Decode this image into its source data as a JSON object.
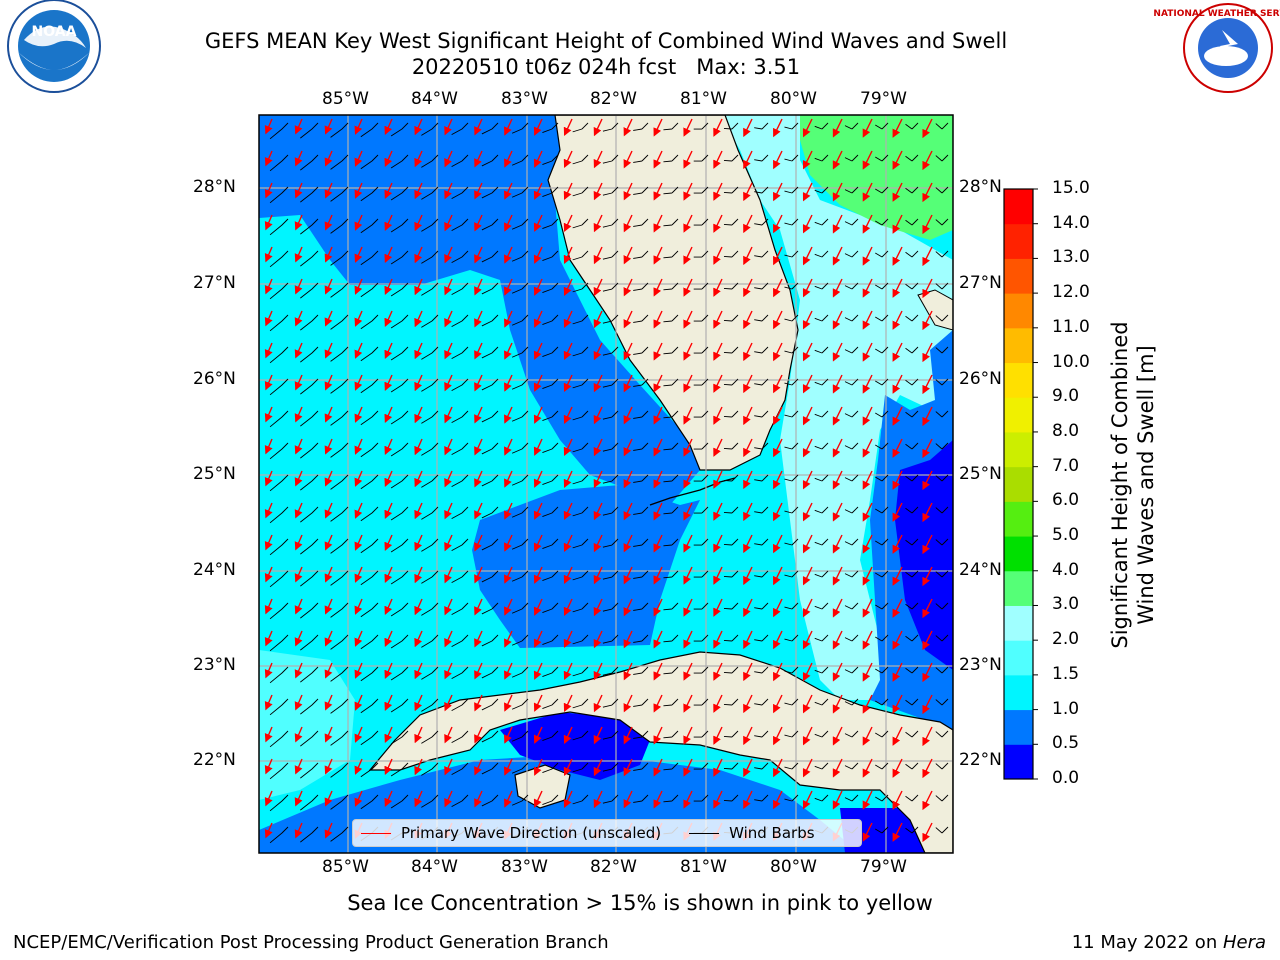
{
  "title_line1": "GEFS MEAN Key West Significant Height of Combined Wind Waves and Swell",
  "title_line2": "20220510 t06z 024h fcst   Max: 3.51",
  "lon_labels": [
    "85°W",
    "84°W",
    "83°W",
    "82°W",
    "81°W",
    "80°W",
    "79°W"
  ],
  "lat_labels": [
    "28°N",
    "27°N",
    "26°N",
    "25°N",
    "24°N",
    "23°N",
    "22°N"
  ],
  "colorbar": {
    "label_line1": "Significant Height of Combined",
    "label_line2": "Wind Waves and Swell [m]",
    "ticks": [
      "0.0",
      "0.5",
      "1.0",
      "1.5",
      "2.0",
      "3.0",
      "4.0",
      "5.0",
      "6.0",
      "7.0",
      "8.0",
      "9.0",
      "10.0",
      "11.0",
      "12.0",
      "13.0",
      "14.0",
      "15.0"
    ],
    "colors": [
      "#0000ff",
      "#0078ff",
      "#00f5ff",
      "#50ffff",
      "#a0ffff",
      "#55ff77",
      "#00e000",
      "#55ee11",
      "#aadd00",
      "#ccee00",
      "#f0f000",
      "#ffe000",
      "#ffbb00",
      "#ff8800",
      "#ff5500",
      "#ff2200",
      "#ff0000"
    ]
  },
  "legend": {
    "wave_label": "Primary Wave Direction (unscaled)",
    "barb_label": "Wind Barbs",
    "wave_color": "#ff0000",
    "barb_color": "#000000"
  },
  "sea_ice_note": "Sea Ice Concentration > 15% is shown in pink to yellow",
  "footer_left": "NCEP/EMC/Verification Post Processing Product Generation Branch",
  "footer_date": "11 May 2022 on ",
  "footer_host": "Hera",
  "colors": {
    "land": "#f0eedc",
    "grid": "#b0b0b0"
  },
  "logos": {
    "left_icon": "noaa-logo",
    "left_text": "NOAA",
    "right_icon": "nws-logo",
    "right_text": "NATIONAL WEATHER SERVICE"
  }
}
